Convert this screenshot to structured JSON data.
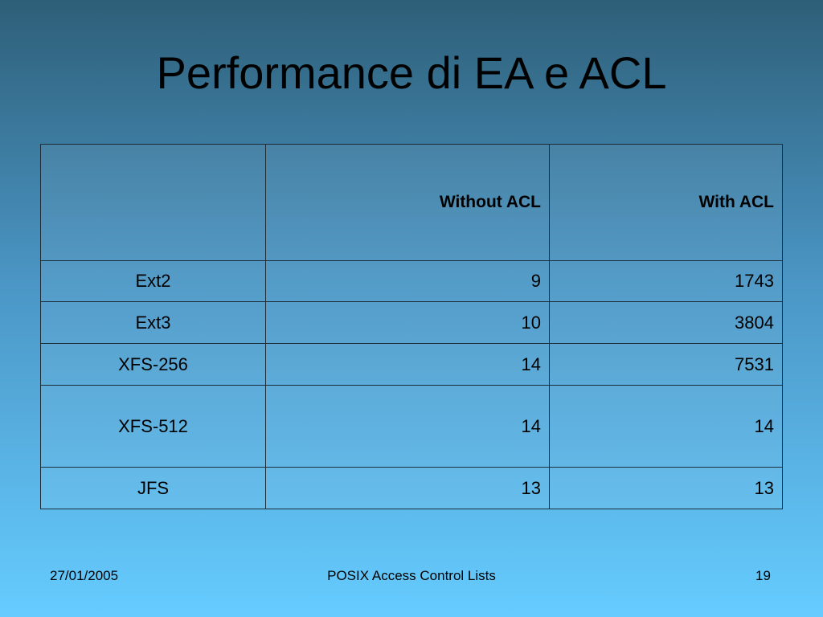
{
  "title": "Performance di EA e ACL",
  "table": {
    "columns": [
      "Without ACL",
      "With ACL"
    ],
    "rows": [
      {
        "label": "Ext2",
        "values": [
          9,
          1743
        ]
      },
      {
        "label": "Ext3",
        "values": [
          10,
          3804
        ]
      },
      {
        "label": "XFS-256",
        "values": [
          14,
          7531
        ]
      },
      {
        "label": "XFS-512",
        "values": [
          14,
          14
        ]
      },
      {
        "label": "JFS",
        "values": [
          13,
          13
        ]
      }
    ]
  },
  "footer": {
    "date": "27/01/2005",
    "center": "POSIX Access Control Lists",
    "page": "19"
  }
}
